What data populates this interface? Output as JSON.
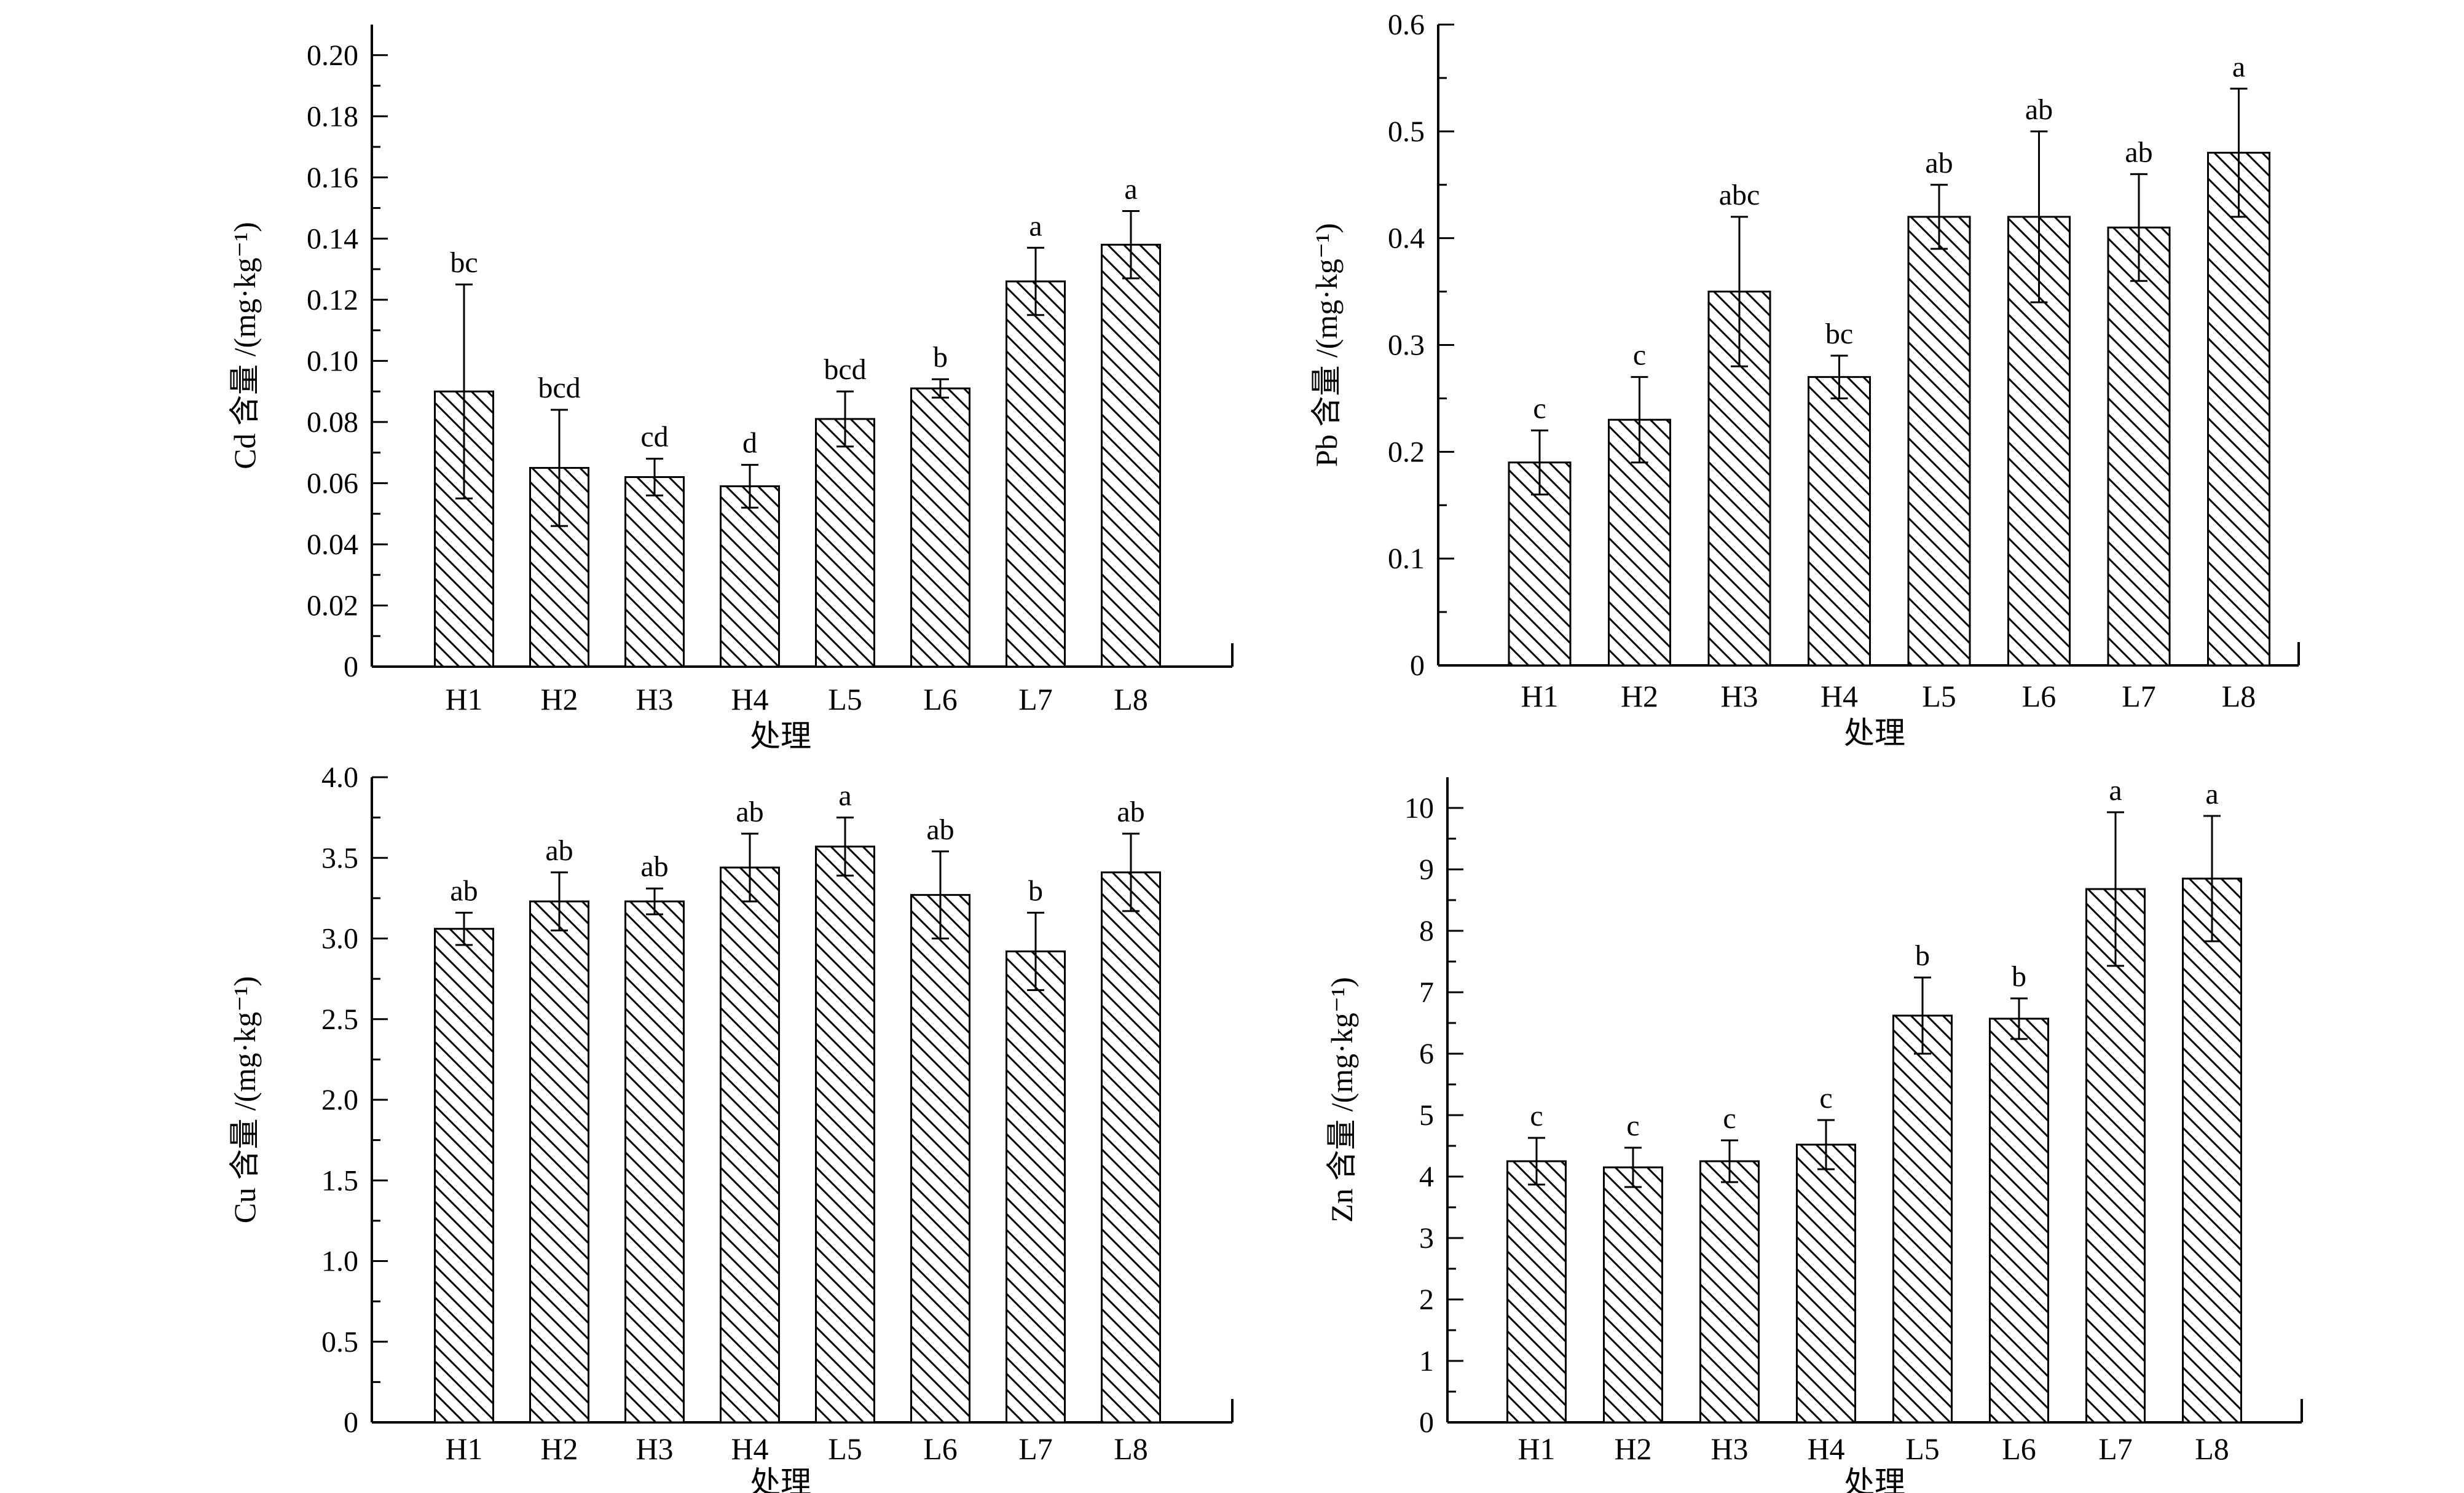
{
  "chart_data": [
    {
      "type": "bar",
      "element": "Cd",
      "categories": [
        "H1",
        "H2",
        "H3",
        "H4",
        "L5",
        "L6",
        "L7",
        "L8"
      ],
      "values": [
        0.09,
        0.065,
        0.062,
        0.059,
        0.081,
        0.091,
        0.126,
        0.138
      ],
      "errors": [
        0.035,
        0.019,
        0.006,
        0.007,
        0.009,
        0.003,
        0.011,
        0.011
      ],
      "significance": [
        "bc",
        "bcd",
        "cd",
        "d",
        "bcd",
        "b",
        "a",
        "a"
      ],
      "ylim": [
        0,
        0.21
      ],
      "yticks": [
        0,
        0.02,
        0.04,
        0.06,
        0.08,
        0.1,
        0.12,
        0.14,
        0.16,
        0.18,
        0.2
      ],
      "ytick_labels": [
        "0",
        "0.02",
        "0.04",
        "0.06",
        "0.08",
        "0.10",
        "0.12",
        "0.14",
        "0.16",
        "0.18",
        "0.20"
      ],
      "ylabel": "Cd 含量 /(mg·kg⁻¹)",
      "xlabel": "处理"
    },
    {
      "type": "bar",
      "element": "Pb",
      "categories": [
        "H1",
        "H2",
        "H3",
        "H4",
        "L5",
        "L6",
        "L7",
        "L8"
      ],
      "values": [
        0.19,
        0.23,
        0.35,
        0.27,
        0.42,
        0.42,
        0.41,
        0.48
      ],
      "errors": [
        0.03,
        0.04,
        0.07,
        0.02,
        0.03,
        0.08,
        0.05,
        0.06
      ],
      "significance": [
        "c",
        "c",
        "abc",
        "bc",
        "ab",
        "ab",
        "ab",
        "a"
      ],
      "ylim": [
        0,
        0.6
      ],
      "yticks": [
        0,
        0.1,
        0.2,
        0.3,
        0.4,
        0.5,
        0.6
      ],
      "ytick_labels": [
        "0",
        "0.1",
        "0.2",
        "0.3",
        "0.4",
        "0.5",
        "0.6"
      ],
      "ylabel": "Pb 含量 /(mg·kg⁻¹)",
      "xlabel": "处理"
    },
    {
      "type": "bar",
      "element": "Cu",
      "categories": [
        "H1",
        "H2",
        "H3",
        "H4",
        "L5",
        "L6",
        "L7",
        "L8"
      ],
      "values": [
        3.06,
        3.23,
        3.23,
        3.44,
        3.57,
        3.27,
        2.92,
        3.41
      ],
      "errors": [
        0.1,
        0.18,
        0.08,
        0.21,
        0.18,
        0.27,
        0.24,
        0.24
      ],
      "significance": [
        "ab",
        "ab",
        "ab",
        "ab",
        "a",
        "ab",
        "b",
        "ab"
      ],
      "ylim": [
        0,
        4.0
      ],
      "yticks": [
        0,
        0.5,
        1.0,
        1.5,
        2.0,
        2.5,
        3.0,
        3.5,
        4.0
      ],
      "ytick_labels": [
        "0",
        "0.5",
        "1.0",
        "1.5",
        "2.0",
        "2.5",
        "3.0",
        "3.5",
        "4.0"
      ],
      "ylabel": "Cu 含量 /(mg·kg⁻¹)",
      "xlabel": "处理"
    },
    {
      "type": "bar",
      "element": "Zn",
      "categories": [
        "H1",
        "H2",
        "H3",
        "H4",
        "L5",
        "L6",
        "L7",
        "L8"
      ],
      "values": [
        4.25,
        4.15,
        4.25,
        4.52,
        6.62,
        6.57,
        8.68,
        8.85
      ],
      "errors": [
        0.38,
        0.32,
        0.34,
        0.4,
        0.62,
        0.33,
        1.25,
        1.02
      ],
      "significance": [
        "c",
        "c",
        "c",
        "c",
        "b",
        "b",
        "a",
        "a"
      ],
      "ylim": [
        0,
        10.5
      ],
      "yticks": [
        0,
        1,
        2,
        3,
        4,
        5,
        6,
        7,
        8,
        9,
        10
      ],
      "ytick_labels": [
        "0",
        "1",
        "2",
        "3",
        "4",
        "5",
        "6",
        "7",
        "8",
        "9",
        "10"
      ],
      "ylabel": "Zn 含量 /(mg·kg⁻¹)",
      "xlabel": "处理"
    }
  ]
}
